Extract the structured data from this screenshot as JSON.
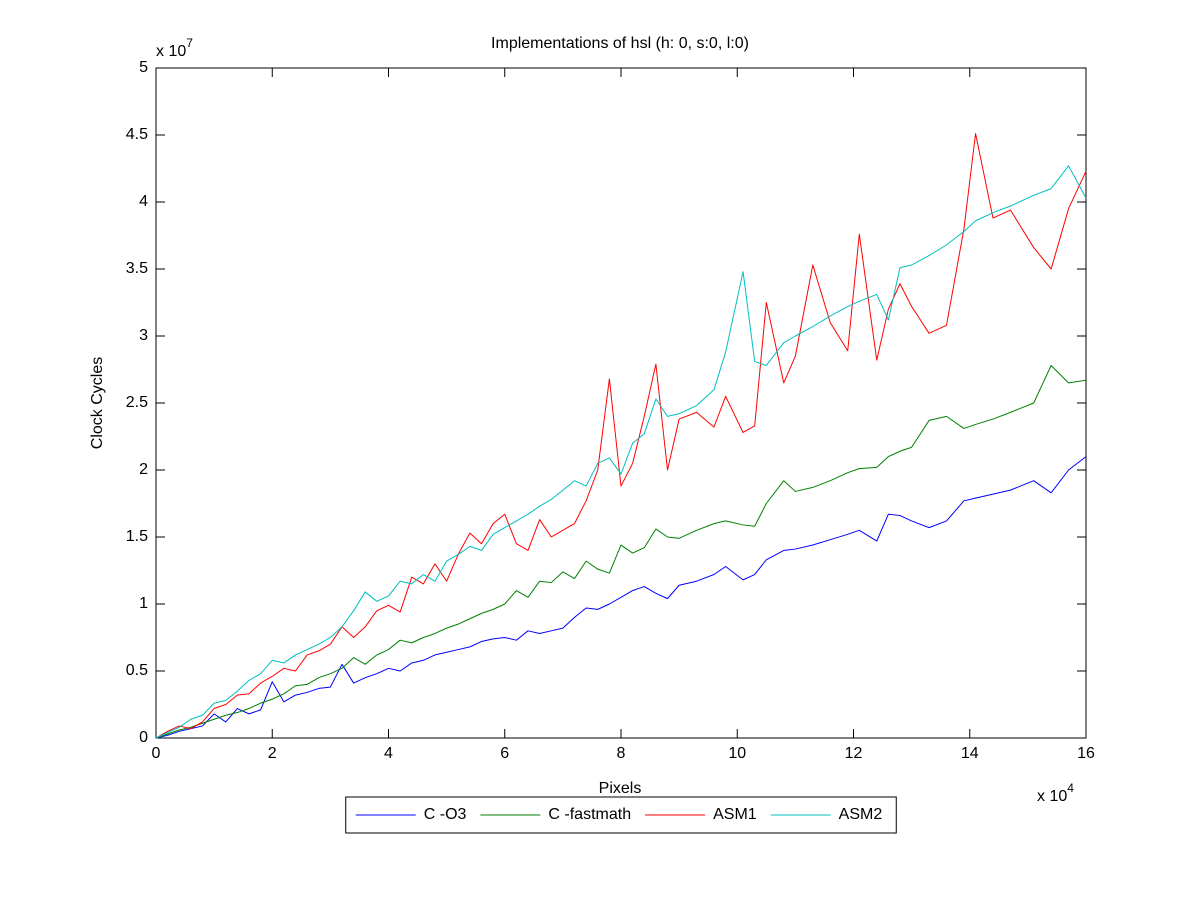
{
  "chart_data": {
    "type": "line",
    "title": "Implementations of hsl (h: 0, s:0, l:0)",
    "x_label": "Pixels",
    "y_label": "Clock Cycles",
    "x_multiplier": {
      "base": "x 10",
      "exponent": "4"
    },
    "y_multiplier": {
      "base": "x 10",
      "exponent": "7"
    },
    "x": [
      0,
      0.2,
      0.4,
      0.6,
      0.8,
      1.0,
      1.2,
      1.4,
      1.6,
      1.8,
      2.0,
      2.2,
      2.4,
      2.6,
      2.8,
      3.0,
      3.2,
      3.4,
      3.6,
      3.8,
      4.0,
      4.2,
      4.4,
      4.6,
      4.8,
      5.0,
      5.2,
      5.4,
      5.6,
      5.8,
      6.0,
      6.2,
      6.4,
      6.6,
      6.8,
      7.0,
      7.2,
      7.4,
      7.6,
      7.8,
      8.0,
      8.2,
      8.4,
      8.6,
      8.8,
      9.0,
      9.3,
      9.6,
      9.8,
      10.1,
      10.3,
      10.5,
      10.8,
      11.0,
      11.3,
      11.6,
      11.9,
      12.1,
      12.4,
      12.6,
      12.8,
      13.0,
      13.3,
      13.6,
      13.9,
      14.1,
      14.4,
      14.7,
      15.1,
      15.4,
      15.7,
      16.0
    ],
    "series": [
      {
        "name": "C -O3",
        "color": "#0000ff",
        "values": [
          0,
          0.02,
          0.05,
          0.07,
          0.09,
          0.18,
          0.12,
          0.22,
          0.18,
          0.21,
          0.42,
          0.27,
          0.32,
          0.34,
          0.37,
          0.38,
          0.55,
          0.41,
          0.45,
          0.48,
          0.52,
          0.5,
          0.56,
          0.58,
          0.62,
          0.64,
          0.66,
          0.68,
          0.72,
          0.74,
          0.75,
          0.73,
          0.8,
          0.78,
          0.8,
          0.82,
          0.9,
          0.97,
          0.96,
          1.0,
          1.05,
          1.1,
          1.13,
          1.08,
          1.04,
          1.14,
          1.17,
          1.22,
          1.28,
          1.18,
          1.22,
          1.33,
          1.4,
          1.41,
          1.44,
          1.48,
          1.52,
          1.55,
          1.47,
          1.67,
          1.66,
          1.62,
          1.57,
          1.62,
          1.77,
          1.79,
          1.82,
          1.85,
          1.92,
          1.83,
          2.0,
          2.1
        ]
      },
      {
        "name": "C -fastmath",
        "color": "#008000",
        "values": [
          0,
          0.03,
          0.06,
          0.08,
          0.11,
          0.14,
          0.17,
          0.19,
          0.22,
          0.26,
          0.29,
          0.33,
          0.39,
          0.4,
          0.45,
          0.48,
          0.52,
          0.6,
          0.55,
          0.62,
          0.66,
          0.73,
          0.71,
          0.75,
          0.78,
          0.82,
          0.85,
          0.89,
          0.93,
          0.96,
          1.0,
          1.1,
          1.05,
          1.17,
          1.16,
          1.24,
          1.19,
          1.32,
          1.26,
          1.23,
          1.44,
          1.38,
          1.42,
          1.56,
          1.5,
          1.49,
          1.55,
          1.6,
          1.62,
          1.59,
          1.58,
          1.75,
          1.92,
          1.84,
          1.87,
          1.92,
          1.98,
          2.01,
          2.02,
          2.1,
          2.14,
          2.17,
          2.37,
          2.4,
          2.31,
          2.34,
          2.38,
          2.43,
          2.5,
          2.78,
          2.65,
          2.67
        ]
      },
      {
        "name": "ASM1",
        "color": "#ff0000",
        "values": [
          0,
          0.05,
          0.09,
          0.07,
          0.12,
          0.22,
          0.25,
          0.32,
          0.33,
          0.41,
          0.46,
          0.52,
          0.5,
          0.62,
          0.65,
          0.7,
          0.83,
          0.75,
          0.83,
          0.95,
          0.99,
          0.94,
          1.2,
          1.15,
          1.3,
          1.17,
          1.37,
          1.53,
          1.45,
          1.6,
          1.67,
          1.45,
          1.4,
          1.63,
          1.5,
          1.55,
          1.6,
          1.77,
          2.0,
          2.68,
          1.88,
          2.05,
          2.4,
          2.79,
          2.0,
          2.38,
          2.43,
          2.32,
          2.55,
          2.28,
          2.33,
          3.25,
          2.65,
          2.85,
          3.53,
          3.1,
          2.89,
          3.76,
          2.82,
          3.2,
          3.39,
          3.22,
          3.02,
          3.08,
          3.8,
          4.51,
          3.88,
          3.94,
          3.66,
          3.5,
          3.95,
          4.23
        ]
      },
      {
        "name": "ASM2",
        "color": "#00bfbf",
        "values": [
          0,
          0.04,
          0.08,
          0.14,
          0.17,
          0.26,
          0.28,
          0.35,
          0.43,
          0.48,
          0.58,
          0.56,
          0.62,
          0.66,
          0.7,
          0.75,
          0.83,
          0.95,
          1.09,
          1.02,
          1.06,
          1.17,
          1.15,
          1.22,
          1.17,
          1.32,
          1.37,
          1.43,
          1.4,
          1.52,
          1.57,
          1.62,
          1.67,
          1.73,
          1.78,
          1.85,
          1.92,
          1.88,
          2.05,
          2.09,
          1.97,
          2.2,
          2.27,
          2.53,
          2.4,
          2.42,
          2.48,
          2.6,
          2.88,
          3.48,
          2.81,
          2.78,
          2.95,
          3.0,
          3.07,
          3.15,
          3.22,
          3.26,
          3.31,
          3.12,
          3.51,
          3.53,
          3.6,
          3.68,
          3.78,
          3.86,
          3.92,
          3.97,
          4.05,
          4.1,
          4.27,
          4.03
        ]
      }
    ],
    "xlim": [
      0,
      16
    ],
    "ylim": [
      0,
      5
    ],
    "xticks": [
      0,
      2,
      4,
      6,
      8,
      10,
      12,
      14,
      16
    ],
    "yticks": [
      0,
      0.5,
      1,
      1.5,
      2,
      2.5,
      3,
      3.5,
      4,
      4.5,
      5
    ],
    "legend": "bottom"
  }
}
